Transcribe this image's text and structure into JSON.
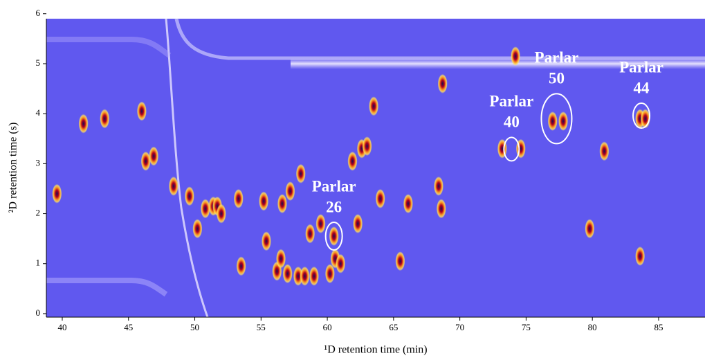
{
  "chart_data": {
    "type": "scatter",
    "x_label": "¹D retention time (min)",
    "y_label": "²D retention time (s)",
    "xlim": [
      38.8,
      88.5
    ],
    "ylim": [
      -0.07,
      5.9
    ],
    "xticks": [
      40,
      45,
      50,
      55,
      60,
      65,
      70,
      75,
      80,
      85
    ],
    "yticks": [
      0,
      1,
      2,
      3,
      4,
      5,
      6
    ],
    "x": [
      39.6,
      41.6,
      43.2,
      46,
      46.3,
      46.9,
      48.4,
      49.6,
      50.2,
      50.8,
      51.4,
      51.7,
      52,
      53.3,
      53.5,
      55.2,
      55.4,
      56.2,
      56.5,
      56.6,
      57,
      57.2,
      57.8,
      58,
      58.3,
      58.7,
      59,
      59.5,
      60.2,
      60.5,
      60.6,
      61,
      61.9,
      62.3,
      62.6,
      63,
      63.5,
      64,
      65.5,
      66.1,
      68.4,
      68.6,
      68.7,
      73.2,
      74.2,
      74.6,
      77,
      77.8,
      79.8,
      80.9,
      83.6,
      83.6,
      84
    ],
    "values": [
      2.4,
      3.8,
      3.9,
      4.05,
      3.05,
      3.15,
      2.55,
      2.35,
      1.7,
      2.1,
      2.15,
      2.15,
      2.0,
      2.3,
      0.95,
      2.25,
      1.45,
      0.85,
      1.1,
      2.2,
      0.8,
      2.45,
      0.75,
      2.8,
      0.75,
      1.6,
      0.75,
      1.8,
      0.8,
      1.55,
      1.1,
      1.0,
      3.05,
      1.8,
      3.3,
      3.35,
      4.15,
      2.3,
      1.05,
      2.2,
      2.55,
      2.1,
      4.6,
      3.3,
      5.15,
      3.3,
      3.85,
      3.85,
      1.7,
      3.25,
      1.15,
      3.9,
      3.9
    ],
    "annotations": [
      {
        "lines": [
          "Parlar",
          "26"
        ],
        "x": 60.5,
        "y": 1.55
      },
      {
        "lines": [
          "Parlar",
          "40"
        ],
        "x": 73.9,
        "y": 3.29
      },
      {
        "lines": [
          "Parlar",
          "50"
        ],
        "x": 77.3,
        "y": 3.9
      },
      {
        "lines": [
          "Parlar",
          "44"
        ],
        "x": 83.7,
        "y": 3.96
      }
    ]
  }
}
